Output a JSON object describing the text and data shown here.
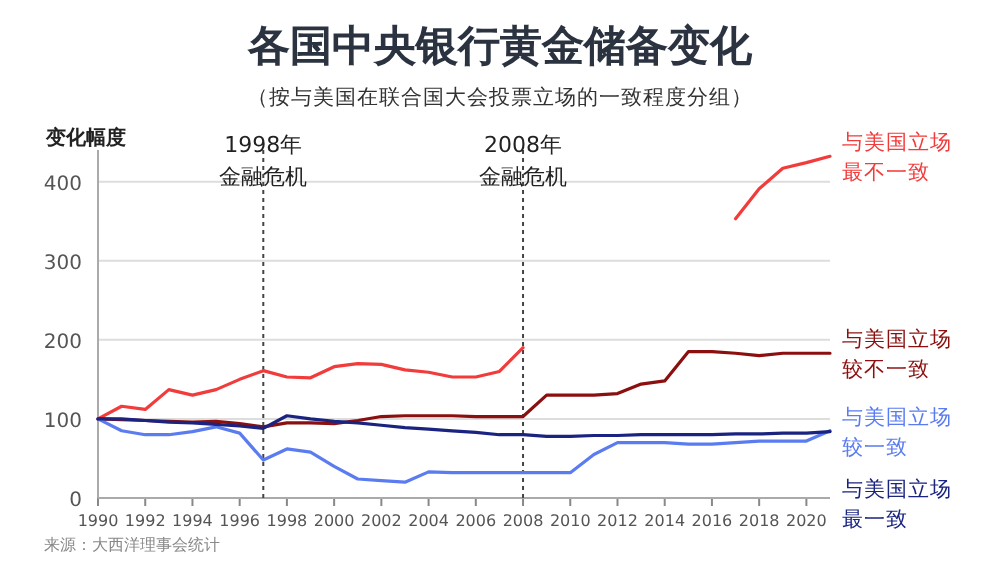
{
  "chart_data": {
    "type": "line",
    "title": "各国中央银行黄金储备变化",
    "subtitle": "（按与美国在联合国大会投票立场的一致程度分组）",
    "ylabel": "变化幅度",
    "x": [
      1990,
      1991,
      1992,
      1993,
      1994,
      1995,
      1996,
      1997,
      1998,
      1999,
      2000,
      2001,
      2002,
      2003,
      2004,
      2005,
      2006,
      2007,
      2008,
      2009,
      2010,
      2011,
      2012,
      2013,
      2014,
      2015,
      2016,
      2017,
      2018,
      2019,
      2020,
      2021
    ],
    "xlim": [
      1990,
      2021
    ],
    "xticks": [
      1990,
      1992,
      1994,
      1996,
      1998,
      2000,
      2002,
      2004,
      2006,
      2008,
      2010,
      2012,
      2014,
      2016,
      2018,
      2020
    ],
    "ylim": [
      0,
      440
    ],
    "yticks": [
      0,
      100,
      200,
      300,
      400
    ],
    "grid": "y",
    "legend": false,
    "series": [
      {
        "name": "与美国立场最不一致",
        "color": "#f23b3b",
        "values": [
          100,
          116,
          112,
          137,
          130,
          137,
          150,
          161,
          153,
          152,
          166,
          170,
          169,
          162,
          159,
          153,
          153,
          160,
          190,
          null,
          null,
          null,
          null,
          null,
          null,
          null,
          null,
          353,
          391,
          417,
          424,
          432
        ]
      },
      {
        "name": "与美国立场较不一致",
        "color": "#8b0f0f",
        "values": [
          100,
          99,
          98,
          97,
          96,
          97,
          94,
          90,
          95,
          95,
          94,
          98,
          103,
          104,
          104,
          104,
          103,
          103,
          103,
          130,
          130,
          130,
          132,
          144,
          148,
          185,
          185,
          183,
          180,
          183,
          183,
          183
        ]
      },
      {
        "name": "与美国立场较一致",
        "color": "#5b7cf0",
        "values": [
          100,
          85,
          80,
          80,
          84,
          90,
          82,
          48,
          62,
          58,
          40,
          24,
          22,
          20,
          33,
          32,
          32,
          32,
          32,
          32,
          32,
          55,
          70,
          70,
          70,
          68,
          68,
          70,
          72,
          72,
          72,
          85
        ]
      },
      {
        "name": "与美国立场最一致",
        "color": "#1a2380",
        "values": [
          100,
          100,
          98,
          96,
          95,
          93,
          91,
          88,
          104,
          100,
          97,
          95,
          92,
          89,
          87,
          85,
          83,
          80,
          80,
          78,
          78,
          79,
          79,
          80,
          80,
          80,
          80,
          81,
          81,
          82,
          82,
          84
        ]
      }
    ],
    "ref_lines": [
      {
        "axis": "x",
        "value": 1997,
        "label": "1998年金融危机",
        "line_style": "dotted"
      },
      {
        "axis": "x",
        "value": 2008,
        "label": "2008年金融危机",
        "line_style": "dotted"
      }
    ],
    "annotations": [
      "来源：大西洋理事会统计"
    ]
  }
}
